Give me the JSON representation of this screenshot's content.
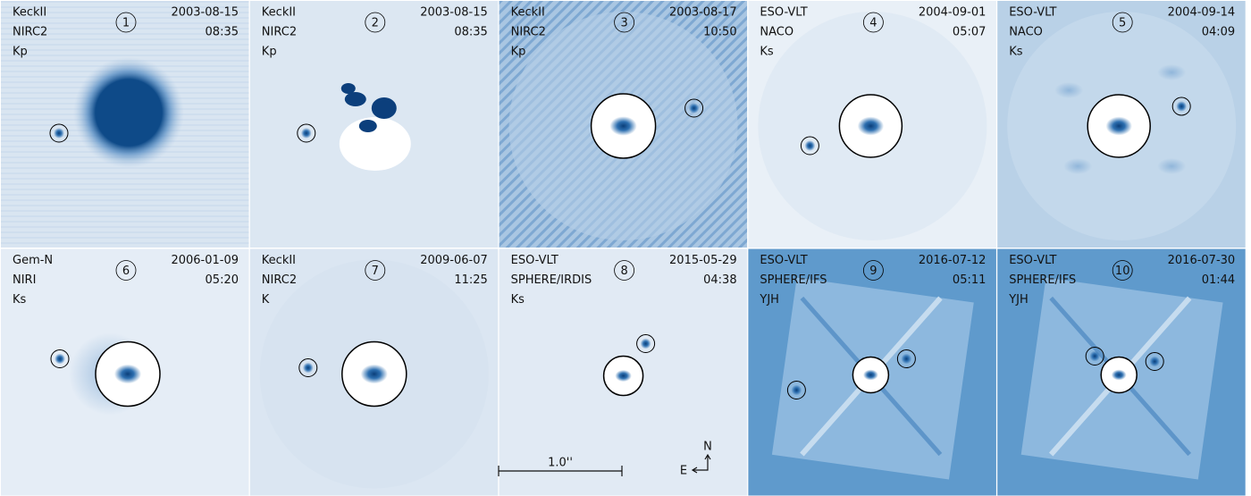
{
  "panels": [
    {
      "number": "1",
      "telescope": "KeckII",
      "instrument": "NIRC2",
      "filter": "Kp",
      "date": "2003-08-15",
      "time": "08:35"
    },
    {
      "number": "2",
      "telescope": "KeckII",
      "instrument": "NIRC2",
      "filter": "Kp",
      "date": "2003-08-15",
      "time": "08:35"
    },
    {
      "number": "3",
      "telescope": "KeckII",
      "instrument": "NIRC2",
      "filter": "Kp",
      "date": "2003-08-17",
      "time": "10:50"
    },
    {
      "number": "4",
      "telescope": "ESO-VLT",
      "instrument": "NACO",
      "filter": "Ks",
      "date": "2004-09-01",
      "time": "05:07"
    },
    {
      "number": "5",
      "telescope": "ESO-VLT",
      "instrument": "NACO",
      "filter": "Ks",
      "date": "2004-09-14",
      "time": "04:09"
    },
    {
      "number": "6",
      "telescope": "Gem-N",
      "instrument": "NIRI",
      "filter": "Ks",
      "date": "2006-01-09",
      "time": "05:20"
    },
    {
      "number": "7",
      "telescope": "KeckII",
      "instrument": "NIRC2",
      "filter": "K",
      "date": "2009-06-07",
      "time": "11:25"
    },
    {
      "number": "8",
      "telescope": "ESO-VLT",
      "instrument": "SPHERE/IRDIS",
      "filter": "Ks",
      "date": "2015-05-29",
      "time": "04:38"
    },
    {
      "number": "9",
      "telescope": "ESO-VLT",
      "instrument": "SPHERE/IFS",
      "filter": "YJH",
      "date": "2016-07-12",
      "time": "05:11"
    },
    {
      "number": "10",
      "telescope": "ESO-VLT",
      "instrument": "SPHERE/IFS",
      "filter": "YJH",
      "date": "2016-07-30",
      "time": "01:44"
    }
  ],
  "scale_bar": {
    "label": "1.0''"
  },
  "compass": {
    "north": "N",
    "east": "E"
  }
}
